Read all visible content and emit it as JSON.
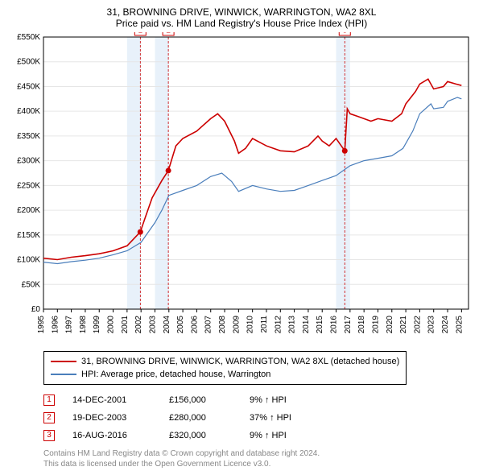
{
  "title": "31, BROWNING DRIVE, WINWICK, WARRINGTON, WA2 8XL",
  "subtitle": "Price paid vs. HM Land Registry's House Price Index (HPI)",
  "chart": {
    "type": "line",
    "background_color": "#ffffff",
    "grid_color": "#e6e6e6",
    "axis_color": "#000000",
    "dashed_marker_color": "#cc0000",
    "shaded_year_fill": "#e8f1fa",
    "title_fontsize": 12,
    "tick_fontsize": 10,
    "x": {
      "min": 1995,
      "max": 2025.5,
      "ticks": [
        1995,
        1996,
        1997,
        1998,
        1999,
        2000,
        2001,
        2002,
        2003,
        2004,
        2005,
        2006,
        2007,
        2008,
        2009,
        2010,
        2011,
        2012,
        2013,
        2014,
        2015,
        2016,
        2017,
        2018,
        2019,
        2020,
        2021,
        2022,
        2023,
        2024,
        2025
      ]
    },
    "y": {
      "min": 0,
      "max": 550000,
      "tick_step": 50000,
      "label_prefix": "£",
      "format": "K"
    },
    "shaded_years": [
      2001,
      2003,
      2016
    ],
    "series": [
      {
        "id": "property",
        "label": "31, BROWNING DRIVE, WINWICK, WARRINGTON, WA2 8XL (detached house)",
        "color": "#cc0000",
        "line_width": 1.6,
        "data": [
          [
            1995,
            103000
          ],
          [
            1996,
            100000
          ],
          [
            1997,
            105000
          ],
          [
            1998,
            108000
          ],
          [
            1999,
            112000
          ],
          [
            2000,
            118000
          ],
          [
            2001,
            128000
          ],
          [
            2001.95,
            156000
          ],
          [
            2002.3,
            185000
          ],
          [
            2002.8,
            225000
          ],
          [
            2003.5,
            260000
          ],
          [
            2003.96,
            280000
          ],
          [
            2004.5,
            330000
          ],
          [
            2005,
            345000
          ],
          [
            2006,
            360000
          ],
          [
            2007,
            385000
          ],
          [
            2007.5,
            395000
          ],
          [
            2008,
            380000
          ],
          [
            2008.7,
            340000
          ],
          [
            2009,
            315000
          ],
          [
            2009.5,
            325000
          ],
          [
            2010,
            345000
          ],
          [
            2011,
            330000
          ],
          [
            2012,
            320000
          ],
          [
            2013,
            318000
          ],
          [
            2014,
            330000
          ],
          [
            2014.7,
            350000
          ],
          [
            2015,
            340000
          ],
          [
            2015.5,
            330000
          ],
          [
            2016,
            345000
          ],
          [
            2016.62,
            320000
          ],
          [
            2016.8,
            405000
          ],
          [
            2017,
            395000
          ],
          [
            2017.5,
            390000
          ],
          [
            2018,
            385000
          ],
          [
            2018.5,
            380000
          ],
          [
            2019,
            385000
          ],
          [
            2020,
            380000
          ],
          [
            2020.7,
            395000
          ],
          [
            2021,
            415000
          ],
          [
            2021.7,
            440000
          ],
          [
            2022,
            455000
          ],
          [
            2022.6,
            465000
          ],
          [
            2023,
            445000
          ],
          [
            2023.7,
            450000
          ],
          [
            2024,
            460000
          ],
          [
            2024.6,
            455000
          ],
          [
            2025,
            452000
          ]
        ]
      },
      {
        "id": "hpi",
        "label": "HPI: Average price, detached house, Warrington",
        "color": "#4a7ebb",
        "line_width": 1.2,
        "data": [
          [
            1995,
            95000
          ],
          [
            1996,
            92000
          ],
          [
            1997,
            96000
          ],
          [
            1998,
            99000
          ],
          [
            1999,
            103000
          ],
          [
            2000,
            110000
          ],
          [
            2001,
            118000
          ],
          [
            2002,
            135000
          ],
          [
            2003,
            175000
          ],
          [
            2003.5,
            200000
          ],
          [
            2004,
            230000
          ],
          [
            2005,
            240000
          ],
          [
            2006,
            250000
          ],
          [
            2007,
            268000
          ],
          [
            2007.8,
            275000
          ],
          [
            2008.5,
            258000
          ],
          [
            2009,
            238000
          ],
          [
            2010,
            250000
          ],
          [
            2011,
            243000
          ],
          [
            2012,
            238000
          ],
          [
            2013,
            240000
          ],
          [
            2014,
            250000
          ],
          [
            2015,
            260000
          ],
          [
            2016,
            270000
          ],
          [
            2017,
            290000
          ],
          [
            2018,
            300000
          ],
          [
            2019,
            305000
          ],
          [
            2020,
            310000
          ],
          [
            2020.8,
            325000
          ],
          [
            2021.5,
            360000
          ],
          [
            2022,
            395000
          ],
          [
            2022.8,
            415000
          ],
          [
            2023,
            405000
          ],
          [
            2023.7,
            408000
          ],
          [
            2024,
            420000
          ],
          [
            2024.7,
            428000
          ],
          [
            2025,
            425000
          ]
        ]
      }
    ],
    "sale_markers": [
      {
        "n": "1",
        "year": 2001.95,
        "price": 156000
      },
      {
        "n": "2",
        "year": 2003.96,
        "price": 280000
      },
      {
        "n": "3",
        "year": 2016.62,
        "price": 320000
      }
    ]
  },
  "legend": {
    "property": "31, BROWNING DRIVE, WINWICK, WARRINGTON, WA2 8XL (detached house)",
    "hpi": "HPI: Average price, detached house, Warrington"
  },
  "sales": [
    {
      "n": "1",
      "date": "14-DEC-2001",
      "price": "£156,000",
      "pct": "9% ↑ HPI"
    },
    {
      "n": "2",
      "date": "19-DEC-2003",
      "price": "£280,000",
      "pct": "37% ↑ HPI"
    },
    {
      "n": "3",
      "date": "16-AUG-2016",
      "price": "£320,000",
      "pct": "9% ↑ HPI"
    }
  ],
  "footnote": {
    "line1": "Contains HM Land Registry data © Crown copyright and database right 2024.",
    "line2": "This data is licensed under the Open Government Licence v3.0."
  }
}
